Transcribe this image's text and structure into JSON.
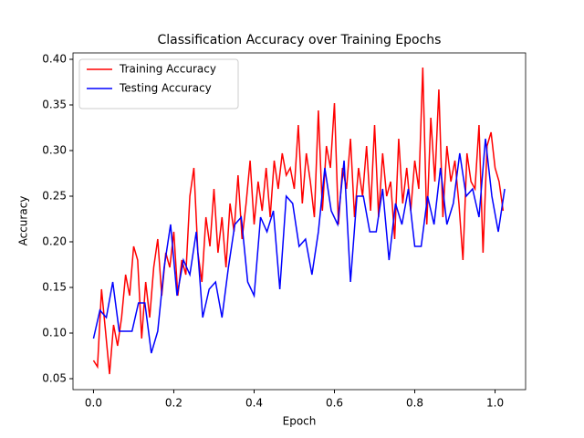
{
  "chart_data": {
    "type": "line",
    "title": "Classification Accuracy over Training Epochs",
    "x_label": "Epoch",
    "y_label": "Accuracy",
    "xlim": [
      -0.051,
      1.076
    ],
    "ylim": [
      0.038,
      0.407
    ],
    "xticks": [
      {
        "value": 0,
        "label": "0.0"
      },
      0.2,
      0.4,
      0.6,
      0.8,
      {
        "value": 1,
        "label": "1.0"
      }
    ],
    "yticks": [
      0.05,
      {
        "value": 0.1,
        "label": "0.10"
      },
      0.15,
      {
        "value": 0.2,
        "label": "0.20"
      },
      0.25,
      {
        "value": 0.3,
        "label": "0.30"
      },
      0.35,
      {
        "value": 0.4,
        "label": "0.40"
      }
    ],
    "legend": "upper left",
    "grid": false,
    "series": [
      {
        "name": "Training Accuracy",
        "color": "#ff0000",
        "x": [
          0,
          0.01,
          0.02,
          0.03,
          0.04,
          0.05,
          0.06,
          0.07,
          0.08,
          0.09,
          0.1,
          0.11,
          0.12,
          0.13,
          0.14,
          0.15,
          0.16,
          0.17,
          0.18,
          0.19,
          0.2,
          0.21,
          0.22,
          0.23,
          0.24,
          0.25,
          0.26,
          0.27,
          0.28,
          0.29,
          0.3,
          0.31,
          0.32,
          0.33,
          0.34,
          0.35,
          0.36,
          0.37,
          0.38,
          0.39,
          0.4,
          0.41,
          0.42,
          0.43,
          0.44,
          0.45,
          0.46,
          0.47,
          0.48,
          0.49,
          0.5,
          0.51,
          0.52,
          0.53,
          0.54,
          0.55,
          0.56,
          0.57,
          0.58,
          0.59,
          0.6,
          0.61,
          0.62,
          0.63,
          0.64,
          0.65,
          0.66,
          0.67,
          0.68,
          0.69,
          0.7,
          0.71,
          0.72,
          0.73,
          0.74,
          0.75,
          0.76,
          0.77,
          0.78,
          0.79,
          0.8,
          0.81,
          0.82,
          0.83,
          0.84,
          0.85,
          0.86,
          0.87,
          0.88,
          0.89,
          0.9,
          0.91,
          0.92,
          0.93,
          0.94,
          0.95,
          0.96,
          0.97,
          0.98,
          0.99,
          1.0,
          1.01,
          1.02
        ],
        "values": [
          0.07,
          0.063,
          0.148,
          0.102,
          0.055,
          0.109,
          0.086,
          0.117,
          0.164,
          0.141,
          0.195,
          0.18,
          0.094,
          0.156,
          0.117,
          0.172,
          0.203,
          0.141,
          0.188,
          0.172,
          0.211,
          0.141,
          0.18,
          0.164,
          0.25,
          0.281,
          0.188,
          0.156,
          0.227,
          0.195,
          0.258,
          0.188,
          0.227,
          0.172,
          0.242,
          0.211,
          0.273,
          0.203,
          0.242,
          0.289,
          0.219,
          0.266,
          0.234,
          0.281,
          0.227,
          0.289,
          0.258,
          0.297,
          0.273,
          0.281,
          0.258,
          0.328,
          0.242,
          0.297,
          0.266,
          0.227,
          0.344,
          0.234,
          0.305,
          0.281,
          0.352,
          0.219,
          0.281,
          0.258,
          0.313,
          0.227,
          0.281,
          0.25,
          0.305,
          0.234,
          0.328,
          0.227,
          0.297,
          0.25,
          0.266,
          0.203,
          0.313,
          0.242,
          0.281,
          0.234,
          0.289,
          0.258,
          0.391,
          0.219,
          0.336,
          0.266,
          0.367,
          0.227,
          0.305,
          0.266,
          0.289,
          0.242,
          0.18,
          0.297,
          0.266,
          0.258,
          0.328,
          0.188,
          0.305,
          0.32,
          0.281,
          0.266,
          0.234
        ]
      },
      {
        "name": "Testing Accuracy",
        "color": "#0000ff",
        "x": [
          0,
          0.016,
          0.032,
          0.048,
          0.064,
          0.08,
          0.096,
          0.112,
          0.128,
          0.144,
          0.16,
          0.176,
          0.192,
          0.208,
          0.224,
          0.24,
          0.256,
          0.272,
          0.288,
          0.304,
          0.32,
          0.336,
          0.352,
          0.368,
          0.384,
          0.4,
          0.416,
          0.432,
          0.448,
          0.464,
          0.48,
          0.496,
          0.512,
          0.528,
          0.544,
          0.56,
          0.576,
          0.592,
          0.608,
          0.624,
          0.64,
          0.656,
          0.672,
          0.688,
          0.704,
          0.72,
          0.736,
          0.752,
          0.768,
          0.784,
          0.8,
          0.816,
          0.832,
          0.848,
          0.864,
          0.88,
          0.896,
          0.912,
          0.928,
          0.944,
          0.96,
          0.976,
          0.992,
          1.008,
          1.024
        ],
        "values": [
          0.094,
          0.125,
          0.117,
          0.156,
          0.102,
          0.102,
          0.102,
          0.133,
          0.133,
          0.078,
          0.102,
          0.172,
          0.219,
          0.141,
          0.18,
          0.164,
          0.211,
          0.117,
          0.148,
          0.156,
          0.117,
          0.172,
          0.219,
          0.227,
          0.156,
          0.141,
          0.227,
          0.211,
          0.234,
          0.148,
          0.25,
          0.242,
          0.195,
          0.203,
          0.164,
          0.211,
          0.281,
          0.234,
          0.219,
          0.289,
          0.156,
          0.25,
          0.25,
          0.211,
          0.211,
          0.258,
          0.18,
          0.242,
          0.219,
          0.258,
          0.195,
          0.195,
          0.25,
          0.219,
          0.281,
          0.219,
          0.242,
          0.297,
          0.25,
          0.258,
          0.227,
          0.313,
          0.25,
          0.211,
          0.258
        ]
      }
    ]
  }
}
